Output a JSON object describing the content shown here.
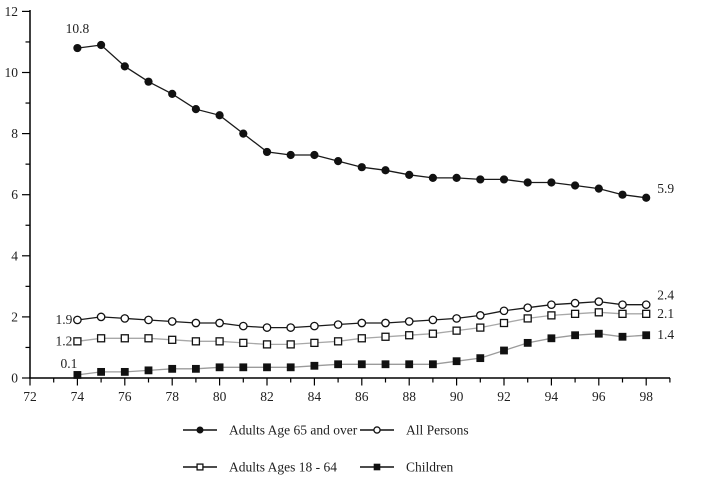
{
  "page": {
    "background_color": "#ffffff"
  },
  "chart_data": {
    "type": "line",
    "title": "",
    "xlabel": "",
    "ylabel": "",
    "grid": false,
    "legend_position": "bottom",
    "xlim": [
      72,
      99
    ],
    "ylim": [
      0,
      12
    ],
    "y_major_ticks": [
      0,
      2,
      4,
      6,
      8,
      10,
      12
    ],
    "y_minor_ticks": [
      1,
      3,
      5,
      7,
      9,
      11
    ],
    "x_major_ticks": [
      72,
      74,
      76,
      78,
      80,
      82,
      84,
      86,
      88,
      90,
      92,
      94,
      96,
      98
    ],
    "x_minor_ticks": [
      73,
      75,
      77,
      79,
      81,
      83,
      85,
      87,
      89,
      91,
      93,
      95,
      97,
      99
    ],
    "x": [
      74,
      75,
      76,
      77,
      78,
      79,
      80,
      81,
      82,
      83,
      84,
      85,
      86,
      87,
      88,
      89,
      90,
      91,
      92,
      93,
      94,
      95,
      96,
      97,
      98
    ],
    "series": [
      {
        "name": "Adults Age 65 and over",
        "marker": "filled-circle",
        "line_color": "#1a1a1a",
        "values": [
          10.8,
          10.9,
          10.2,
          9.7,
          9.3,
          8.8,
          8.6,
          8.0,
          7.4,
          7.3,
          7.3,
          7.1,
          6.9,
          6.8,
          6.65,
          6.55,
          6.55,
          6.5,
          6.5,
          6.4,
          6.4,
          6.3,
          6.2,
          6.0,
          5.9
        ]
      },
      {
        "name": "All Persons",
        "marker": "open-circle",
        "line_color": "#1a1a1a",
        "values": [
          1.9,
          2.0,
          1.95,
          1.9,
          1.85,
          1.8,
          1.8,
          1.7,
          1.65,
          1.65,
          1.7,
          1.75,
          1.8,
          1.8,
          1.85,
          1.9,
          1.95,
          2.05,
          2.2,
          2.3,
          2.4,
          2.45,
          2.5,
          2.4,
          2.4
        ]
      },
      {
        "name": "Adults Ages 18 - 64",
        "marker": "open-square",
        "line_color": "#a8a8a8",
        "values": [
          1.2,
          1.3,
          1.3,
          1.3,
          1.25,
          1.2,
          1.2,
          1.15,
          1.1,
          1.1,
          1.15,
          1.2,
          1.3,
          1.35,
          1.4,
          1.45,
          1.55,
          1.65,
          1.8,
          1.95,
          2.05,
          2.1,
          2.15,
          2.1,
          2.1
        ]
      },
      {
        "name": "Children",
        "marker": "filled-square",
        "line_color": "#9b9b9b",
        "values": [
          0.1,
          0.2,
          0.2,
          0.25,
          0.3,
          0.3,
          0.35,
          0.35,
          0.35,
          0.35,
          0.4,
          0.45,
          0.45,
          0.45,
          0.45,
          0.45,
          0.55,
          0.65,
          0.9,
          1.15,
          1.3,
          1.4,
          1.45,
          1.35,
          1.4
        ]
      }
    ],
    "annotations": [
      {
        "text": "10.8",
        "series": 0,
        "point": "first",
        "placement": "above"
      },
      {
        "text": "5.9",
        "series": 0,
        "point": "last",
        "placement": "right-above"
      },
      {
        "text": "1.9",
        "series": 1,
        "point": "first",
        "placement": "left"
      },
      {
        "text": "2.4",
        "series": 1,
        "point": "last",
        "placement": "right-above"
      },
      {
        "text": "1.2",
        "series": 2,
        "point": "first",
        "placement": "left"
      },
      {
        "text": "2.1",
        "series": 2,
        "point": "last",
        "placement": "right"
      },
      {
        "text": "0.1",
        "series": 3,
        "point": "first",
        "placement": "left-above"
      },
      {
        "text": "1.4",
        "series": 3,
        "point": "last",
        "placement": "right"
      }
    ],
    "legend_rows": [
      [
        {
          "marker": "filled-circle",
          "label": "Adults Age 65 and over"
        },
        {
          "marker": "open-circle",
          "label": "All Persons"
        }
      ],
      [
        {
          "marker": "open-square",
          "label": "Adults Ages 18 - 64"
        },
        {
          "marker": "filled-square",
          "label": "Children"
        }
      ]
    ],
    "axis_color": "#000000",
    "marker_color": "#111111",
    "text_color": "#1f1f1f"
  }
}
